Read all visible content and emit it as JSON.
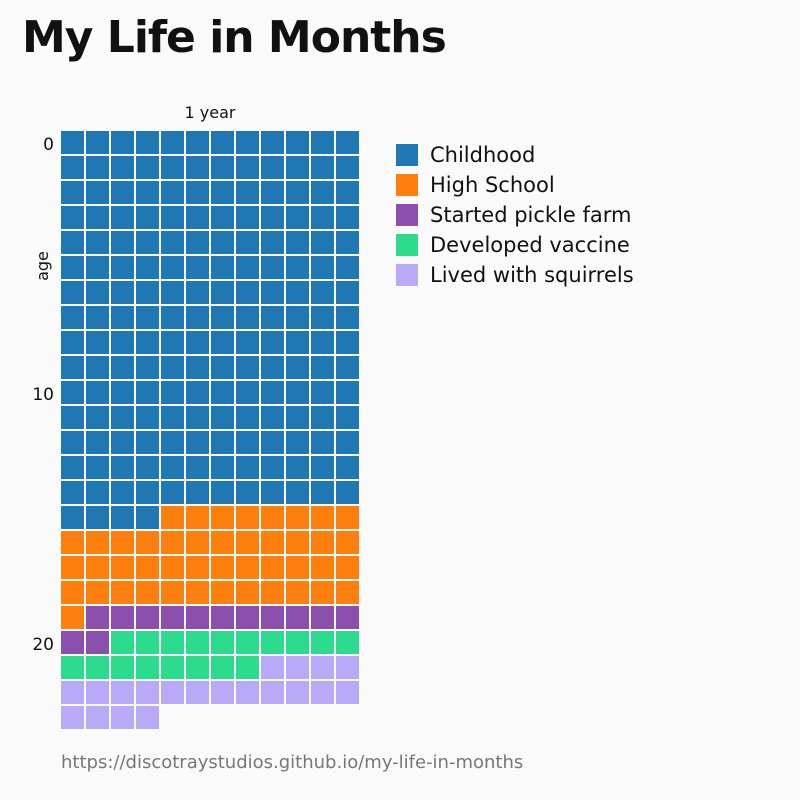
{
  "title": "My Life in Months",
  "source": "https://discotraystudios.github.io/my-life-in-months",
  "chart_data": {
    "type": "waffle",
    "unit": "month",
    "months_per_row": 12,
    "column_label": "1 year",
    "ylabel": "age",
    "y_ticks": [
      0,
      10,
      20
    ],
    "colors": {
      "Childhood": "#1f77b4",
      "High School": "#ff7f0e",
      "Started pickle farm": "#8c4fae",
      "Developed vaccine": "#2ddb8f",
      "Lived with squirrels": "#b8aaf8"
    },
    "series": [
      {
        "name": "Childhood",
        "months": 184
      },
      {
        "name": "High School",
        "months": 45
      },
      {
        "name": "Started pickle farm",
        "months": 13
      },
      {
        "name": "Developed vaccine",
        "months": 18
      },
      {
        "name": "Lived with squirrels",
        "months": 20
      }
    ]
  }
}
